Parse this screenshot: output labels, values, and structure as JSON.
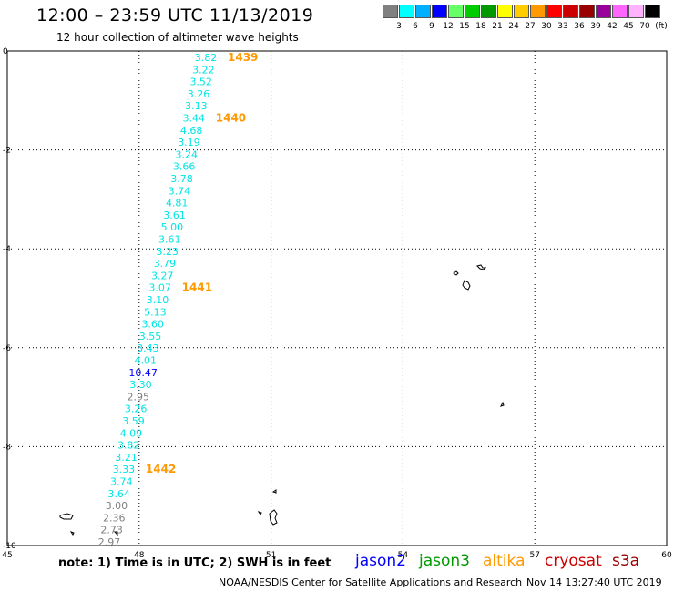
{
  "header": {
    "title": "12:00 – 23:59 UTC 11/13/2019",
    "subtitle": "12 hour collection of altimeter wave heights"
  },
  "legend": {
    "colors": [
      "#808080",
      "#00ffff",
      "#00b0ff",
      "#0000ff",
      "#66ff66",
      "#00cc00",
      "#009900",
      "#ffff00",
      "#ffcc00",
      "#ff9900",
      "#ff0000",
      "#cc0000",
      "#990000",
      "#990099",
      "#ff66ff",
      "#ffb3ff",
      "#000000"
    ],
    "labels": [
      "3",
      "6",
      "9",
      "12",
      "15",
      "18",
      "21",
      "24",
      "27",
      "30",
      "33",
      "36",
      "39",
      "42",
      "45",
      "70",
      "(ft)"
    ]
  },
  "map": {
    "x_ticks": [
      "45",
      "48",
      "51",
      "54",
      "57",
      "60"
    ],
    "y_ticks": [
      "0",
      "-2",
      "-4",
      "-6",
      "-8",
      "-10"
    ],
    "x_range": [
      45,
      60
    ],
    "y_range": [
      -10,
      0
    ]
  },
  "track": [
    {
      "v": "3.82",
      "c": "cyan"
    },
    {
      "v": "3.22",
      "c": "cyan"
    },
    {
      "v": "3.52",
      "c": "cyan"
    },
    {
      "v": "3.26",
      "c": "cyan"
    },
    {
      "v": "3.13",
      "c": "cyan"
    },
    {
      "v": "3.44",
      "c": "cyan"
    },
    {
      "v": "4.68",
      "c": "cyan"
    },
    {
      "v": "3.19",
      "c": "cyan"
    },
    {
      "v": "3.24",
      "c": "cyan"
    },
    {
      "v": "3.66",
      "c": "cyan"
    },
    {
      "v": "3.78",
      "c": "cyan"
    },
    {
      "v": "3.74",
      "c": "cyan"
    },
    {
      "v": "4.81",
      "c": "cyan"
    },
    {
      "v": "3.61",
      "c": "cyan"
    },
    {
      "v": "5.00",
      "c": "cyan"
    },
    {
      "v": "3.61",
      "c": "cyan"
    },
    {
      "v": "3.23",
      "c": "cyan"
    },
    {
      "v": "3.79",
      "c": "cyan"
    },
    {
      "v": "3.27",
      "c": "cyan"
    },
    {
      "v": "3.07",
      "c": "cyan"
    },
    {
      "v": "3.10",
      "c": "cyan"
    },
    {
      "v": "5.13",
      "c": "cyan"
    },
    {
      "v": "3.60",
      "c": "cyan"
    },
    {
      "v": "3.55",
      "c": "cyan"
    },
    {
      "v": "3.43",
      "c": "cyan"
    },
    {
      "v": "4.01",
      "c": "cyan"
    },
    {
      "v": "10.47",
      "c": "blue"
    },
    {
      "v": "3.30",
      "c": "cyan"
    },
    {
      "v": "2.95",
      "c": "gray"
    },
    {
      "v": "3.26",
      "c": "cyan"
    },
    {
      "v": "3.59",
      "c": "cyan"
    },
    {
      "v": "4.09",
      "c": "cyan"
    },
    {
      "v": "3.82",
      "c": "cyan"
    },
    {
      "v": "3.21",
      "c": "cyan"
    },
    {
      "v": "3.33",
      "c": "cyan"
    },
    {
      "v": "3.74",
      "c": "cyan"
    },
    {
      "v": "3.64",
      "c": "cyan"
    },
    {
      "v": "3.00",
      "c": "gray"
    },
    {
      "v": "2.36",
      "c": "gray"
    },
    {
      "v": "2.73",
      "c": "gray"
    },
    {
      "v": "2.97",
      "c": "gray"
    }
  ],
  "time_labels": [
    {
      "text": "1439",
      "row": 0
    },
    {
      "text": "1440",
      "row": 5
    },
    {
      "text": "1441",
      "row": 19
    },
    {
      "text": "1442",
      "row": 34
    }
  ],
  "value_colors": {
    "cyan": "#00e5e5",
    "blue": "#0000ff",
    "gray": "#808080",
    "time": "#ff9900"
  },
  "footer": {
    "note": "note: 1) Time is in UTC; 2) SWH is in feet",
    "credit": "NOAA/NESDIS Center for Satellite Applications and Research",
    "timestamp": "Nov 14 13:27:40 UTC 2019"
  },
  "satellites": [
    {
      "name": "jason2",
      "color": "#0000ff"
    },
    {
      "name": "jason3",
      "color": "#009900"
    },
    {
      "name": "altika",
      "color": "#ff9900"
    },
    {
      "name": "cryosat",
      "color": "#cc0000"
    },
    {
      "name": "s3a",
      "color": "#990000"
    }
  ]
}
